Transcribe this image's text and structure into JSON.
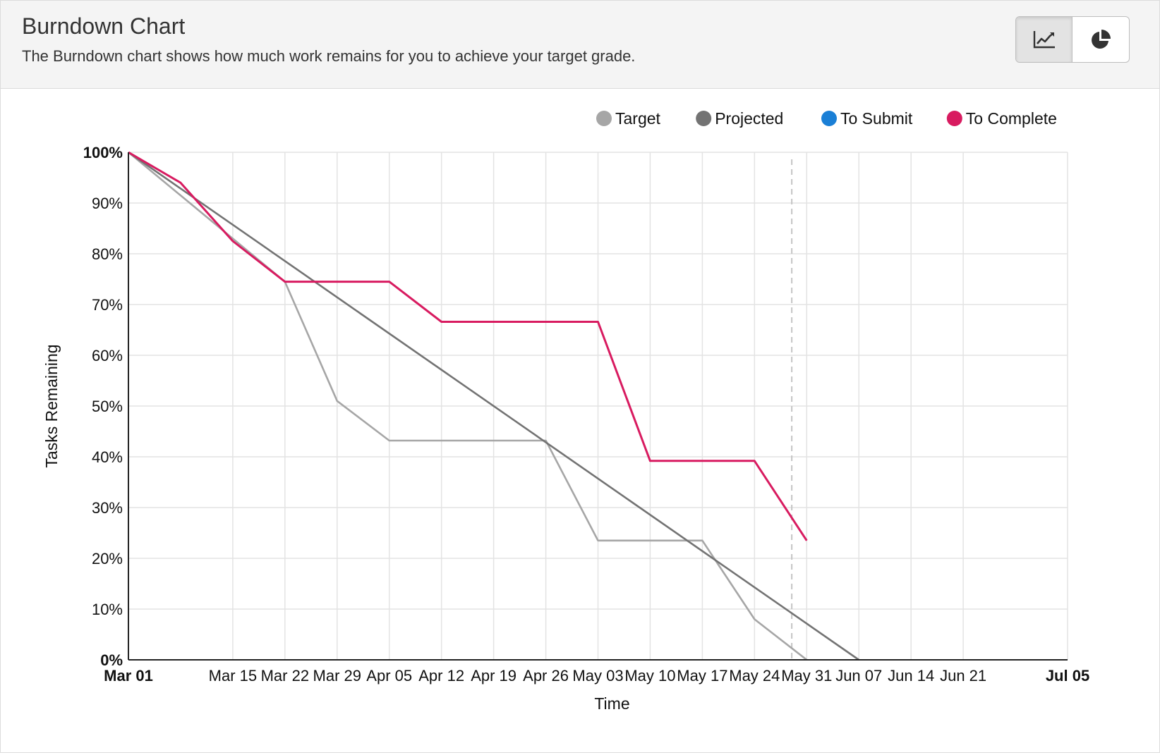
{
  "header": {
    "title": "Burndown Chart",
    "subtitle": "The Burndown chart shows how much work remains for you to achieve your target grade."
  },
  "view_toggle": {
    "options": [
      {
        "icon": "line-chart-icon",
        "active": true
      },
      {
        "icon": "pie-chart-icon",
        "active": false
      }
    ]
  },
  "chart_data": {
    "type": "line",
    "xlabel": "Time",
    "ylabel": "Tasks Remaining",
    "ylim": [
      0,
      100
    ],
    "yticks": [
      "0%",
      "10%",
      "20%",
      "30%",
      "40%",
      "50%",
      "60%",
      "70%",
      "80%",
      "90%",
      "100%"
    ],
    "xlim": [
      "Mar 01",
      "Jul 05"
    ],
    "xticks": [
      "Mar 01",
      "Mar 15",
      "Mar 22",
      "Mar 29",
      "Apr 05",
      "Apr 12",
      "Apr 19",
      "Apr 26",
      "May 03",
      "May 10",
      "May 17",
      "May 24",
      "May 31",
      "Jun 07",
      "Jun 14",
      "Jun 21",
      "Jul 05"
    ],
    "bold_xticks": [
      "Mar 01",
      "Jul 05"
    ],
    "bold_yticks": [
      "0%",
      "100%"
    ],
    "grid": true,
    "legend_position": "top-right",
    "today_marker": "May 29",
    "series": [
      {
        "name": "Target",
        "color": "#a6a6a6",
        "points": [
          [
            "Mar 01",
            100
          ],
          [
            "Mar 22",
            74.5
          ],
          [
            "Mar 29",
            51
          ],
          [
            "Apr 05",
            43.2
          ],
          [
            "Apr 26",
            43.2
          ],
          [
            "May 03",
            23.5
          ],
          [
            "May 17",
            23.5
          ],
          [
            "May 24",
            8
          ],
          [
            "May 31",
            0
          ]
        ]
      },
      {
        "name": "Projected",
        "color": "#737373",
        "points": [
          [
            "Mar 01",
            100
          ],
          [
            "Jun 07",
            0
          ]
        ]
      },
      {
        "name": "To Submit",
        "color": "#1a7fd6",
        "points": []
      },
      {
        "name": "To Complete",
        "color": "#d81b60",
        "points": [
          [
            "Mar 01",
            100
          ],
          [
            "Mar 08",
            94
          ],
          [
            "Mar 15",
            82.5
          ],
          [
            "Mar 22",
            74.5
          ],
          [
            "Apr 05",
            74.5
          ],
          [
            "Apr 12",
            66.6
          ],
          [
            "May 03",
            66.6
          ],
          [
            "May 10",
            39.2
          ],
          [
            "May 24",
            39.2
          ],
          [
            "May 31",
            23.5
          ]
        ]
      }
    ]
  }
}
